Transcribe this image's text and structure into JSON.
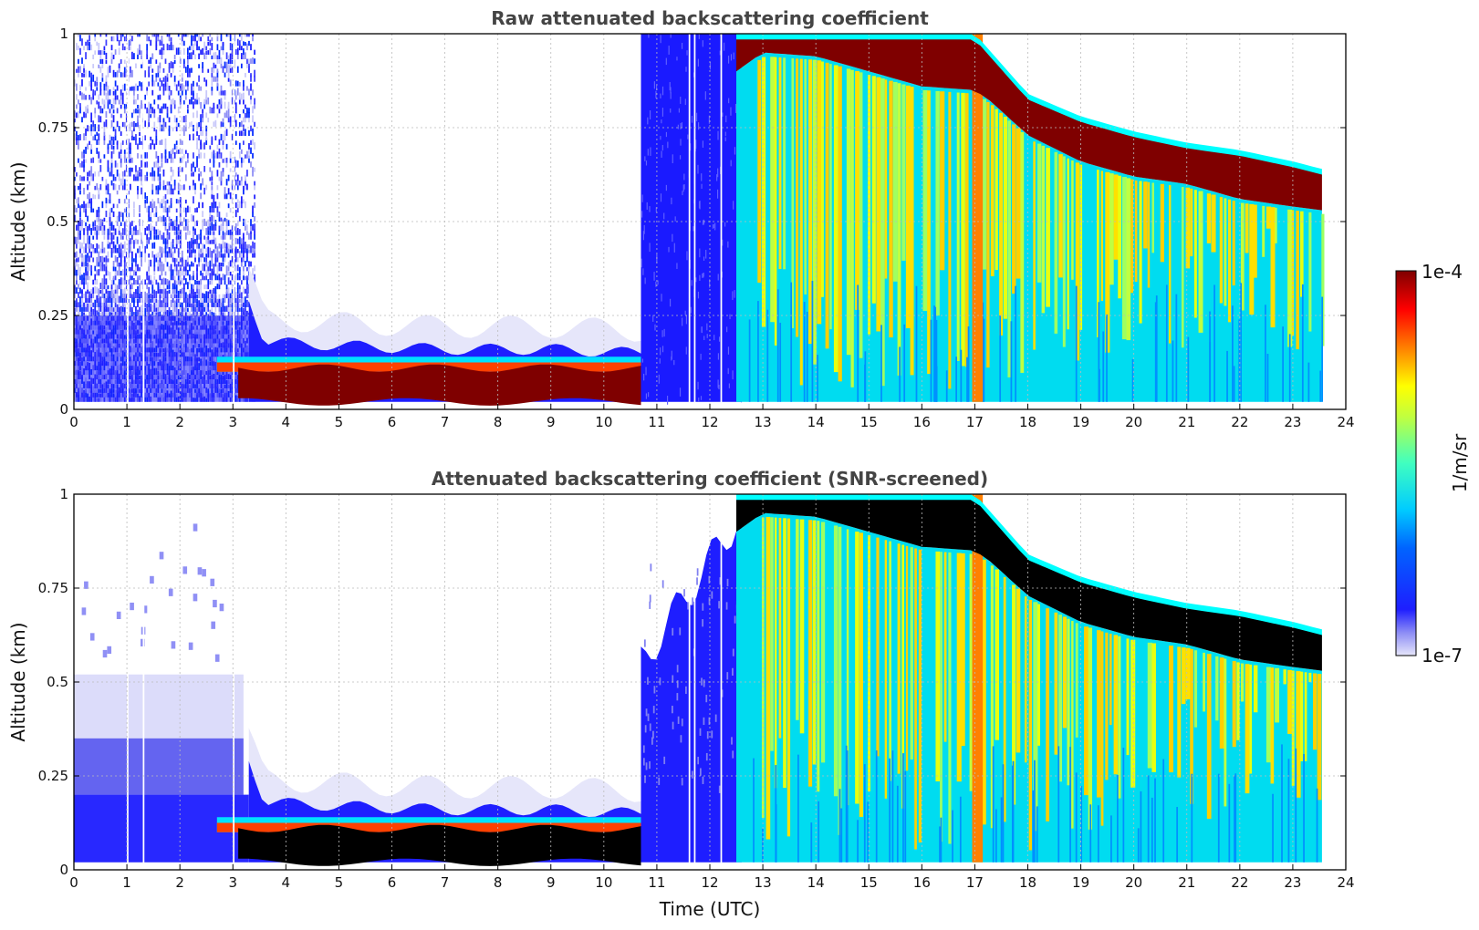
{
  "chart_data": [
    {
      "type": "heatmap",
      "title": "Raw attenuated backscattering coefficient",
      "xlabel": "",
      "ylabel": "Altitude (km)",
      "xlim": [
        0,
        24
      ],
      "ylim": [
        0,
        1
      ],
      "x_ticks": [
        "0",
        "1",
        "2",
        "3",
        "4",
        "5",
        "6",
        "7",
        "8",
        "9",
        "10",
        "11",
        "12",
        "13",
        "14",
        "15",
        "16",
        "17",
        "18",
        "19",
        "20",
        "21",
        "22",
        "23",
        "24"
      ],
      "y_ticks": [
        "0",
        "0.25",
        "0.5",
        "0.75",
        "1"
      ],
      "grid": true,
      "log_scale_color": true,
      "data_end_time": 23.55,
      "cloud_top_km": [
        [
          10.6,
          0.2
        ],
        [
          12.5,
          1.0
        ],
        [
          17.0,
          1.0
        ],
        [
          18,
          0.84
        ],
        [
          19,
          0.78
        ],
        [
          20,
          0.74
        ],
        [
          21,
          0.71
        ],
        [
          22,
          0.69
        ],
        [
          23,
          0.66
        ],
        [
          23.55,
          0.64
        ]
      ],
      "cloud_base_km": [
        [
          12.5,
          0.9
        ],
        [
          13,
          0.95
        ],
        [
          14,
          0.94
        ],
        [
          15,
          0.9
        ],
        [
          16,
          0.86
        ],
        [
          17,
          0.85
        ],
        [
          17.3,
          0.82
        ],
        [
          18,
          0.73
        ],
        [
          19,
          0.66
        ],
        [
          20,
          0.62
        ],
        [
          21,
          0.6
        ],
        [
          22,
          0.56
        ],
        [
          23,
          0.54
        ],
        [
          23.55,
          0.53
        ]
      ],
      "boundary_layer_top_km": [
        [
          0,
          0.35
        ],
        [
          3.3,
          0.3
        ],
        [
          3.6,
          0.18
        ],
        [
          5,
          0.17
        ],
        [
          7,
          0.16
        ],
        [
          9,
          0.16
        ],
        [
          10.6,
          0.15
        ]
      ],
      "fog_layer_km": {
        "start": 2.7,
        "end": 10.7,
        "top": 0.11,
        "bottom": 0.02
      }
    },
    {
      "type": "heatmap",
      "title": "Attenuated backscattering coefficient (SNR-screened)",
      "xlabel": "Time (UTC)",
      "ylabel": "Altitude (km)",
      "xlim": [
        0,
        24
      ],
      "ylim": [
        0,
        1
      ],
      "x_ticks": [
        "0",
        "1",
        "2",
        "3",
        "4",
        "5",
        "6",
        "7",
        "8",
        "9",
        "10",
        "11",
        "12",
        "13",
        "14",
        "15",
        "16",
        "17",
        "18",
        "19",
        "20",
        "21",
        "22",
        "23",
        "24"
      ],
      "y_ticks": [
        "0",
        "0.25",
        "0.5",
        "0.75",
        "1"
      ],
      "grid": true,
      "log_scale_color": true,
      "screened_saturation_color": "#000000",
      "data_end_time": 23.55
    }
  ],
  "colorbar": {
    "label": "1/m/sr",
    "min_label": "1e-7",
    "max_label": "1e-4",
    "min": 1e-07,
    "max": 0.0001,
    "scale": "log",
    "colormap": "jet"
  },
  "colors": {
    "jet_dark_blue": "#00007f",
    "jet_blue": "#0000ff",
    "jet_cyan": "#00ffff",
    "jet_yellow": "#ffff00",
    "jet_red": "#ff0000",
    "jet_dark_red": "#7f0000",
    "grid": "#bbbbbb",
    "title": "#444444"
  }
}
